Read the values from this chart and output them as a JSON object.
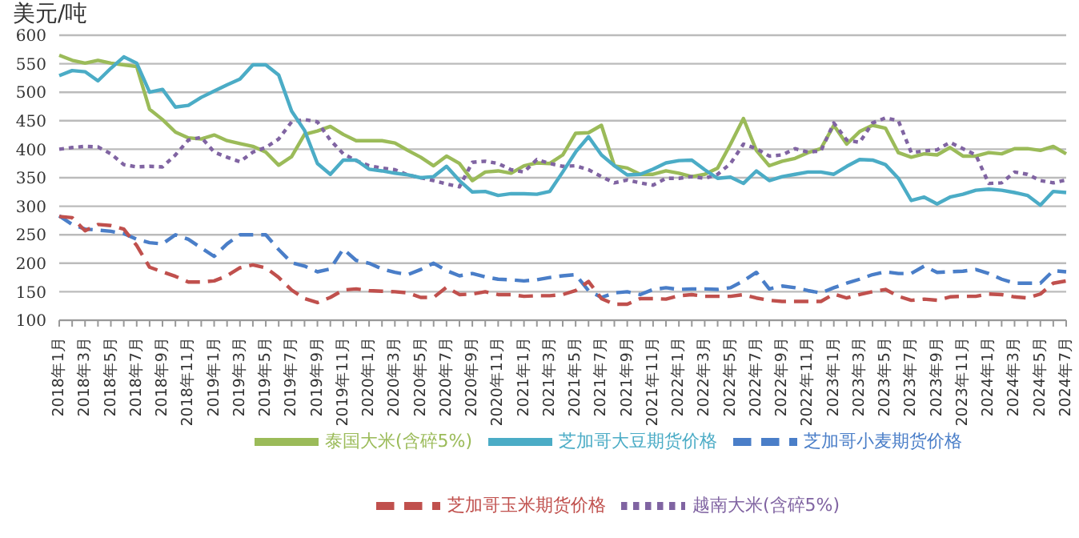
{
  "chart_data": {
    "type": "line",
    "ylabel": "美元/吨",
    "categories": [
      "2018年1月",
      null,
      "2018年3月",
      null,
      "2018年5月",
      null,
      "2018年7月",
      null,
      "2018年9月",
      null,
      "2018年11月",
      null,
      "2019年1月",
      null,
      "2019年3月",
      null,
      "2019年5月",
      null,
      "2019年7月",
      null,
      "2019年9月",
      null,
      "2019年11月",
      null,
      "2020年1月",
      null,
      "2020年3月",
      null,
      "2020年5月",
      null,
      "2020年7月",
      null,
      "2020年9月",
      null,
      "2020年11月",
      null,
      "2021年1月",
      null,
      "2021年3月",
      null,
      "2021年5月",
      null,
      "2021年7月",
      null,
      "2021年9月",
      null,
      "2021年11月",
      null,
      "2022年1月",
      null,
      "2022年3月",
      null,
      "2022年5月",
      null,
      "2022年7月",
      null,
      "2022年9月",
      null,
      "2022年11月",
      null,
      "2023年1月",
      null,
      "2023年3月",
      null,
      "2023年5月",
      null,
      "2023年7月",
      null,
      "2023年9月",
      null,
      "2023年11月",
      null,
      "2024年1月",
      null,
      "2024年3月",
      null,
      "2024年5月",
      null,
      "2024年7月"
    ],
    "series": [
      {
        "name": "芝加哥小麦期货价格",
        "color": "#4a7ec8",
        "line_style": "dashed",
        "values": [
          283,
          268,
          260,
          258,
          256,
          252,
          242,
          236,
          234,
          250,
          242,
          227,
          212,
          234,
          250,
          250,
          250,
          224,
          201,
          195,
          185,
          190,
          225,
          205,
          200,
          190,
          184,
          180,
          189,
          200,
          187,
          178,
          182,
          176,
          172,
          171,
          169,
          171,
          175,
          178,
          180,
          152,
          140,
          148,
          150,
          145,
          154,
          157,
          154,
          155,
          155,
          154,
          157,
          169,
          184,
          155,
          160,
          157,
          152,
          148,
          157,
          165,
          172,
          180,
          185,
          182,
          182,
          195,
          184,
          185,
          186,
          189,
          182,
          172,
          165,
          165,
          165,
          187,
          185
        ]
      },
      {
        "name": "芝加哥玉米期货价格",
        "color": "#c0504d",
        "line_style": "dashed",
        "values": [
          282,
          280,
          257,
          268,
          266,
          260,
          231,
          193,
          185,
          177,
          167,
          167,
          169,
          178,
          192,
          197,
          192,
          175,
          153,
          138,
          131,
          140,
          153,
          155,
          152,
          151,
          150,
          148,
          140,
          140,
          158,
          145,
          146,
          150,
          145,
          145,
          142,
          143,
          143,
          145,
          152,
          168,
          138,
          128,
          128,
          138,
          138,
          137,
          143,
          145,
          142,
          142,
          142,
          145,
          139,
          135,
          133,
          133,
          133,
          133,
          146,
          139,
          145,
          150,
          154,
          142,
          135,
          137,
          135,
          141,
          142,
          142,
          146,
          145,
          141,
          139,
          146,
          165,
          169
        ]
      },
      {
        "name": "泰国大米(含碎5%)",
        "color": "#9bbb59",
        "line_style": "solid",
        "values": [
          565,
          556,
          551,
          556,
          551,
          548,
          545,
          470,
          452,
          430,
          420,
          418,
          425,
          415,
          410,
          405,
          395,
          372,
          387,
          426,
          432,
          440,
          426,
          415,
          415,
          415,
          411,
          398,
          386,
          371,
          388,
          375,
          345,
          360,
          362,
          358,
          371,
          376,
          375,
          390,
          428,
          429,
          442,
          371,
          367,
          356,
          356,
          362,
          358,
          352,
          356,
          367,
          409,
          454,
          398,
          371,
          379,
          384,
          394,
          401,
          442,
          409,
          431,
          442,
          437,
          394,
          386,
          392,
          390,
          403,
          388,
          388,
          394,
          392,
          401,
          401,
          398,
          405,
          392
        ]
      },
      {
        "name": "越南大米(含碎5%)",
        "color": "#8064a2",
        "line_style": "dotted",
        "values": [
          400,
          403,
          405,
          404,
          392,
          373,
          369,
          370,
          369,
          390,
          416,
          421,
          395,
          386,
          378,
          395,
          403,
          418,
          448,
          452,
          448,
          416,
          392,
          380,
          371,
          367,
          364,
          355,
          350,
          345,
          339,
          334,
          377,
          379,
          375,
          364,
          360,
          382,
          375,
          370,
          371,
          364,
          352,
          341,
          346,
          341,
          337,
          349,
          349,
          352,
          349,
          356,
          375,
          409,
          401,
          388,
          390,
          401,
          395,
          397,
          446,
          416,
          412,
          446,
          455,
          450,
          394,
          397,
          399,
          412,
          401,
          390,
          340,
          341,
          360,
          356,
          345,
          341,
          346
        ]
      },
      {
        "name": "芝加哥大豆期货价格",
        "color": "#4bacc6",
        "line_style": "solid",
        "values": [
          529,
          538,
          536,
          520,
          542,
          562,
          551,
          500,
          505,
          474,
          477,
          491,
          502,
          513,
          523,
          548,
          548,
          530,
          467,
          433,
          375,
          356,
          381,
          381,
          365,
          362,
          358,
          355,
          350,
          352,
          370,
          345,
          325,
          326,
          319,
          322,
          322,
          321,
          326,
          360,
          395,
          422,
          390,
          371,
          355,
          356,
          365,
          376,
          380,
          381,
          364,
          349,
          351,
          340,
          362,
          345,
          352,
          356,
          360,
          360,
          356,
          370,
          382,
          381,
          373,
          349,
          310,
          316,
          304,
          316,
          321,
          328,
          330,
          328,
          324,
          319,
          302,
          326,
          324
        ]
      }
    ],
    "ylim": [
      100,
      600
    ],
    "yticks": [
      100,
      150,
      200,
      250,
      300,
      350,
      400,
      450,
      500,
      550,
      600
    ],
    "grid": "y",
    "legend": "bottom",
    "marker": "none"
  }
}
